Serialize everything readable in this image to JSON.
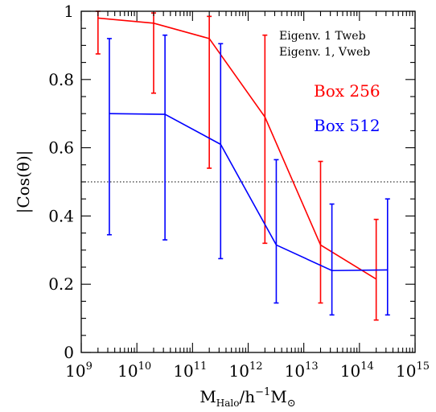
{
  "chart_data": {
    "type": "line",
    "xscale": "log",
    "xlim": [
      1000000000.0,
      1000000000000000.0
    ],
    "ylim": [
      0,
      1
    ],
    "xlabel": {
      "main": "M",
      "sub": "Halo",
      "mid": "/h",
      "sup": "−1",
      "main2": "M",
      "sub2": "⊙"
    },
    "ylabel": "|Cos(θ)|",
    "annotations": [
      "Eigenv. 1 Tweb",
      "Eigenv. 1, Vweb"
    ],
    "reference_line": {
      "y": 0.5,
      "style": "dotted"
    },
    "x_tick_labels": [
      {
        "base": "10",
        "exp": "9",
        "value": 1000000000.0
      },
      {
        "base": "10",
        "exp": "10",
        "value": 10000000000.0
      },
      {
        "base": "10",
        "exp": "11",
        "value": 100000000000.0
      },
      {
        "base": "10",
        "exp": "12",
        "value": 1000000000000.0
      },
      {
        "base": "10",
        "exp": "13",
        "value": 10000000000000.0
      },
      {
        "base": "10",
        "exp": "14",
        "value": 100000000000000.0
      },
      {
        "base": "10",
        "exp": "15",
        "value": 1000000000000000.0
      }
    ],
    "y_ticks": [
      0,
      0.2,
      0.4,
      0.6,
      0.8,
      1
    ],
    "y_tick_labels": [
      "0",
      "0.2",
      "0.4",
      "0.6",
      "0.8",
      "1"
    ],
    "legend_placement": "top-right",
    "series": [
      {
        "name": "Box 256",
        "color": "#ff0000",
        "x": [
          2000000000.0,
          20000000000.0,
          200000000000.0,
          2000000000000.0,
          20000000000000.0,
          200000000000000.0
        ],
        "y": [
          0.98,
          0.965,
          0.92,
          0.69,
          0.315,
          0.215
        ],
        "err_low": [
          0.875,
          0.76,
          0.54,
          0.32,
          0.145,
          0.095
        ],
        "err_high": [
          1.0,
          0.995,
          0.985,
          0.93,
          0.56,
          0.39
        ]
      },
      {
        "name": "Box 512",
        "color": "#0000ff",
        "x": [
          3200000000.0,
          32000000000.0,
          320000000000.0,
          3200000000000.0,
          32000000000000.0,
          320000000000000.0
        ],
        "y": [
          0.7,
          0.698,
          0.61,
          0.315,
          0.24,
          0.242
        ],
        "err_low": [
          0.345,
          0.33,
          0.275,
          0.145,
          0.11,
          0.11
        ],
        "err_high": [
          0.92,
          0.93,
          0.905,
          0.565,
          0.435,
          0.45
        ]
      }
    ]
  }
}
